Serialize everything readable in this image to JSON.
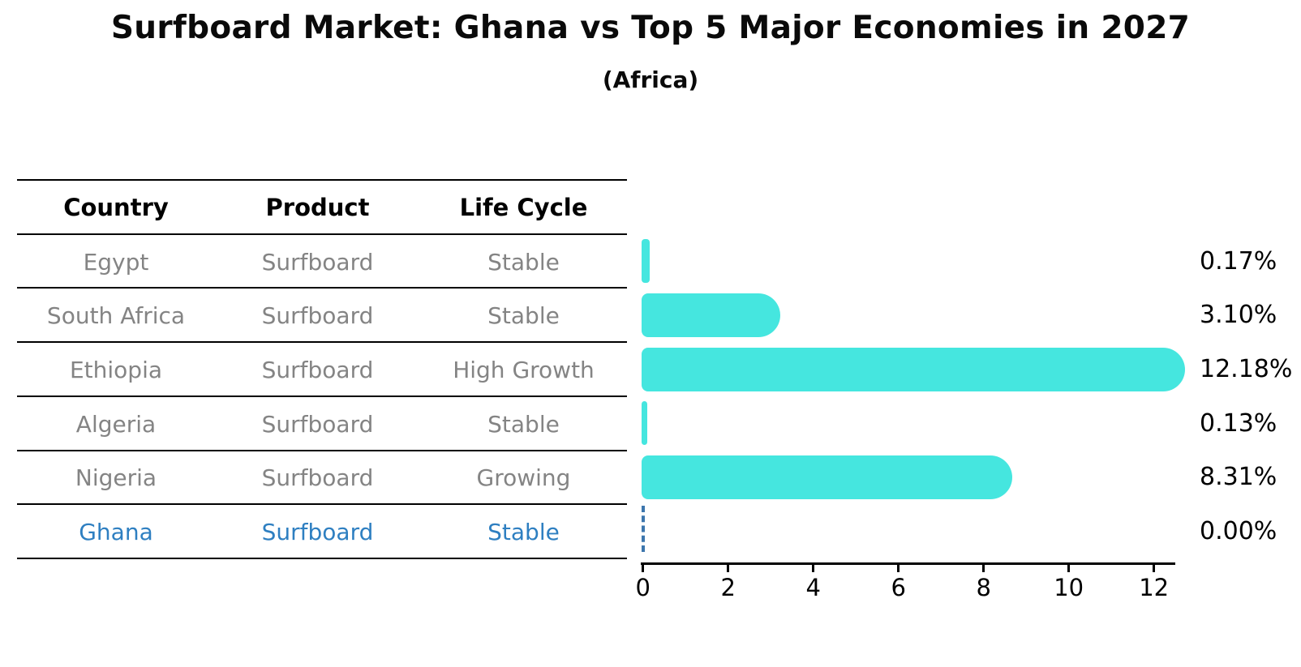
{
  "figure": {
    "title": "Surfboard Market: Ghana vs Top 5 Major Economies in 2027",
    "subtitle": "(Africa)"
  },
  "colors": {
    "bar_fill": "#45E6DF",
    "highlight_text": "#2E7FC1",
    "target_line": "#3D76AD",
    "table_text": "#848484",
    "axis_and_header_text": "#000000"
  },
  "table": {
    "headers": [
      "Country",
      "Product",
      "Life Cycle"
    ]
  },
  "chart_data": {
    "type": "bar",
    "orientation": "horizontal",
    "title": "Surfboard Market: Ghana vs Top 5 Major Economies in 2027",
    "subtitle": "(Africa)",
    "xlabel": "",
    "ylabel": "",
    "xlim": [
      0,
      12.5
    ],
    "x_ticks": [
      0,
      2,
      4,
      6,
      8,
      10,
      12
    ],
    "grid": false,
    "legend": false,
    "value_unit": "%",
    "categories": [
      "Egypt",
      "South Africa",
      "Ethiopia",
      "Algeria",
      "Nigeria",
      "Ghana"
    ],
    "values": [
      0.17,
      3.1,
      12.18,
      0.13,
      8.31,
      0.0
    ],
    "rows": [
      {
        "country": "Egypt",
        "product": "Surfboard",
        "life_cycle": "Stable",
        "value": 0.17,
        "value_label": "0.17%",
        "highlighted": false
      },
      {
        "country": "South Africa",
        "product": "Surfboard",
        "life_cycle": "Stable",
        "value": 3.1,
        "value_label": "3.10%",
        "highlighted": false
      },
      {
        "country": "Ethiopia",
        "product": "Surfboard",
        "life_cycle": "High Growth",
        "value": 12.18,
        "value_label": "12.18%",
        "highlighted": false
      },
      {
        "country": "Algeria",
        "product": "Surfboard",
        "life_cycle": "Stable",
        "value": 0.13,
        "value_label": "0.13%",
        "highlighted": false
      },
      {
        "country": "Nigeria",
        "product": "Surfboard",
        "life_cycle": "Growing",
        "value": 8.31,
        "value_label": "8.31%",
        "highlighted": false
      },
      {
        "country": "Ghana",
        "product": "Surfboard",
        "life_cycle": "Stable",
        "value": 0.0,
        "value_label": "0.00%",
        "highlighted": true
      }
    ]
  }
}
